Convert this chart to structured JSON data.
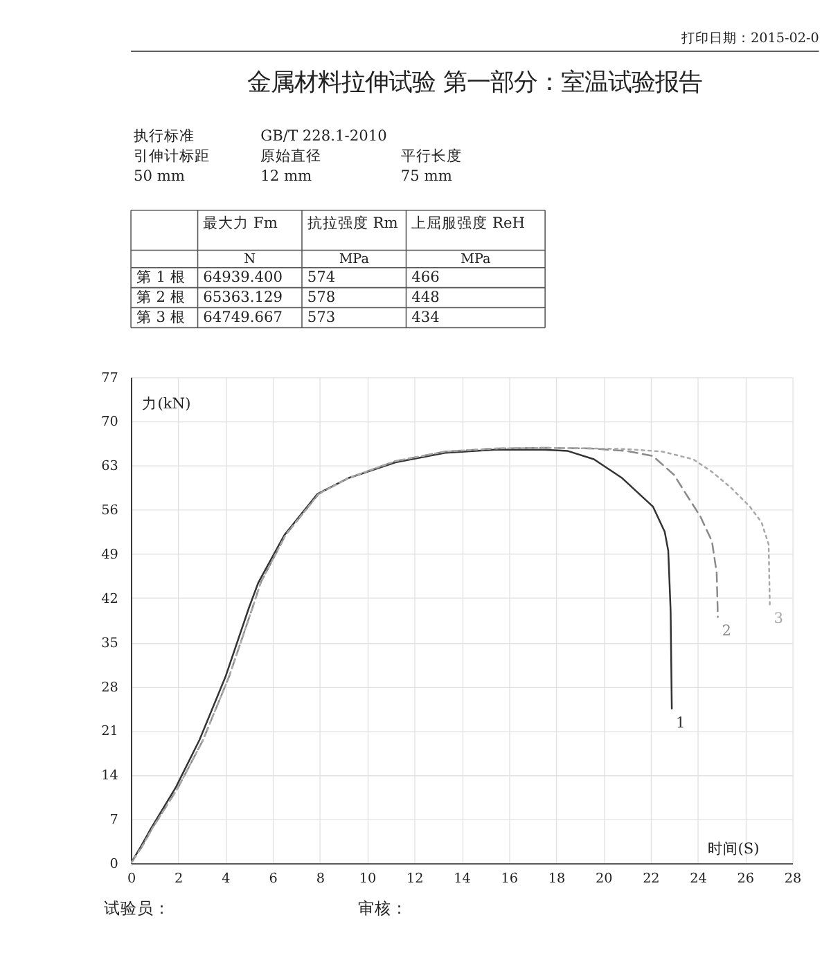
{
  "chart_data": [
    {
      "type": "other",
      "title": "金属材料拉伸试验 第一部分：室温试验报告",
      "annotations": [
        "打印日期：2015-02-0",
        "执行标准",
        "GB/T 228.1-2010",
        "引伸计标距",
        "原始直径",
        "平行长度",
        "50 mm",
        "12 mm",
        "75 mm",
        "最大力 Fm",
        "抗拉强度 Rm",
        "上屈服强度 ReH",
        "N",
        "MPa",
        "MPa",
        "第 1 根",
        "64939.400",
        "574",
        "466",
        "第 2 根",
        "65363.129",
        "578",
        "448",
        "第 3 根",
        "64749.667",
        "573",
        "434"
      ]
    },
    {
      "type": "line",
      "xlabel": "时间(S)",
      "ylabel": "力(kN)",
      "xlim": [
        0,
        28
      ],
      "xticks": [
        0,
        2,
        4,
        6,
        8,
        10,
        12,
        14,
        16,
        18,
        20,
        22,
        24,
        26,
        28
      ],
      "ylim": [
        0,
        77
      ],
      "yticks": [
        0,
        7,
        14,
        21,
        28,
        35,
        42,
        49,
        56,
        63,
        70,
        77
      ],
      "grid": true,
      "annotations": [
        "试验员：",
        "审核："
      ],
      "series": [
        {
          "name": "1",
          "color": "#333333",
          "line_style": "solid",
          "x": [
            0,
            0.4,
            0.85,
            1.9,
            2.9,
            4,
            5,
            5.4,
            6.5,
            7.9,
            9.2,
            11.2,
            13.3,
            15.4,
            17.5,
            18.5,
            19.6,
            20.8,
            22.1,
            22.6,
            22.75,
            22.85,
            22.9
          ],
          "values": [
            0,
            2.5,
            5.5,
            12,
            19.5,
            29.5,
            40.5,
            44.5,
            52,
            58.5,
            61,
            63.5,
            65,
            65.5,
            65.5,
            65.3,
            64,
            61,
            56.5,
            52.5,
            49.5,
            40,
            24.5
          ]
        },
        {
          "name": "2",
          "color": "#8a8a8a",
          "line_style": "dashed",
          "x": [
            0,
            0.45,
            0.9,
            2,
            3.05,
            4.15,
            5.15,
            5.5,
            6.55,
            7.95,
            9.2,
            11.2,
            13.3,
            15.4,
            17.5,
            19.5,
            21,
            22.1,
            23,
            23.5,
            24.1,
            24.6,
            24.8,
            24.85
          ],
          "values": [
            0,
            2.5,
            5.5,
            12,
            19.5,
            29.5,
            40.5,
            44.5,
            52,
            58.5,
            61,
            63.7,
            65.2,
            65.7,
            65.8,
            65.7,
            65.3,
            64.5,
            61.5,
            58.5,
            55,
            51,
            46,
            39
          ]
        },
        {
          "name": "3",
          "color": "#a8a8a8",
          "line_style": "dotted",
          "x": [
            0,
            0.45,
            0.9,
            2,
            3.05,
            4.15,
            5.15,
            5.5,
            6.55,
            7.95,
            9.2,
            11.2,
            13.3,
            15.4,
            17.5,
            19.5,
            21,
            22.5,
            23.8,
            24.6,
            25.4,
            26.2,
            26.7,
            27,
            27.05
          ],
          "values": [
            0,
            2.5,
            5.5,
            12,
            19.5,
            29.5,
            40.5,
            44.5,
            52,
            58.5,
            61,
            63.7,
            65.2,
            65.7,
            65.8,
            65.7,
            65.6,
            65.2,
            64,
            62,
            59.5,
            56.5,
            54,
            50.5,
            41
          ]
        }
      ]
    }
  ]
}
